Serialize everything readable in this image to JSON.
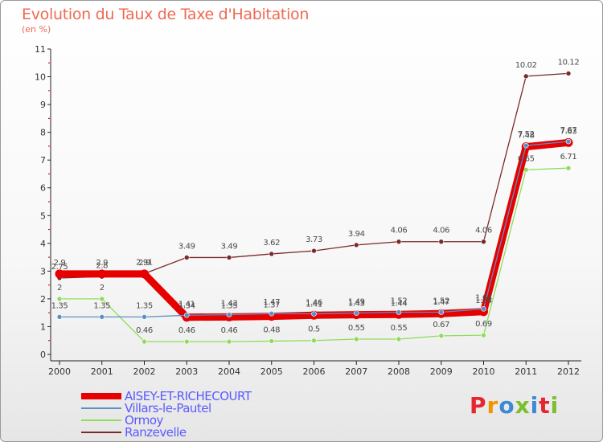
{
  "chart_data": {
    "type": "line",
    "title": "Evolution du Taux de Taxe d'Habitation",
    "ylabel": "(en %)",
    "xlabel": "",
    "ylim": [
      0,
      11
    ],
    "yticks": [
      0,
      1,
      2,
      3,
      4,
      5,
      6,
      7,
      8,
      9,
      10,
      11
    ],
    "x": [
      "2000",
      "2001",
      "2002",
      "2003",
      "2004",
      "2005",
      "2006",
      "2007",
      "2008",
      "2009",
      "2010",
      "2011",
      "2012"
    ],
    "legend_position": "bottom-left",
    "series": [
      {
        "name": "AISEY-ET-RICHECOURT",
        "color": "#e60000",
        "values": [
          2.9,
          2.9,
          2.9,
          1.34,
          1.35,
          1.37,
          1.41,
          1.43,
          1.44,
          1.47,
          1.54,
          7.48,
          7.63
        ],
        "labels": [
          "2.9",
          "2.9",
          "2.9",
          "1.34",
          "1.35",
          "1.37",
          "1.41",
          "1.43",
          "1.44",
          "1.47",
          "1.54",
          "7.48",
          "7.63"
        ]
      },
      {
        "name": "Villars-le-Pautel",
        "color": "#5b8fc6",
        "values": [
          1.35,
          1.35,
          1.35,
          1.41,
          1.43,
          1.47,
          1.46,
          1.49,
          1.52,
          1.52,
          1.64,
          7.52,
          7.67
        ],
        "labels": [
          "1.35",
          "1.35",
          "1.35",
          "1.41",
          "1.43",
          "1.47",
          "1.46",
          "1.49",
          "1.52",
          "1.52",
          "1.64",
          "7.52",
          "7.67"
        ]
      },
      {
        "name": "Ormoy",
        "color": "#8fdc5c",
        "values": [
          2,
          2,
          0.46,
          0.46,
          0.46,
          0.48,
          0.5,
          0.55,
          0.55,
          0.67,
          0.69,
          6.65,
          6.71
        ],
        "labels": [
          "2",
          "2",
          "0.46",
          "0.46",
          "0.46",
          "0.48",
          "0.5",
          "0.55",
          "0.55",
          "0.67",
          "0.69",
          "6.65",
          "6.71"
        ]
      },
      {
        "name": "Ranzevelle",
        "color": "#7a2a2a",
        "values": [
          2.75,
          2.8,
          2.91,
          3.49,
          3.49,
          3.62,
          3.73,
          3.94,
          4.06,
          4.06,
          4.06,
          10.02,
          10.12
        ],
        "labels": [
          "2.75",
          "2.8",
          "2.91",
          "3.49",
          "3.49",
          "3.62",
          "3.73",
          "3.94",
          "4.06",
          "4.06",
          "4.06",
          "10.02",
          "10.12"
        ]
      }
    ]
  },
  "branding": {
    "logo_text": "Proxiti",
    "letter_colors": [
      "#e6262e",
      "#f29400",
      "#3c8ad6",
      "#7bbf2c",
      "#3c8ad6",
      "#e6262e",
      "#7bbf2c"
    ]
  }
}
